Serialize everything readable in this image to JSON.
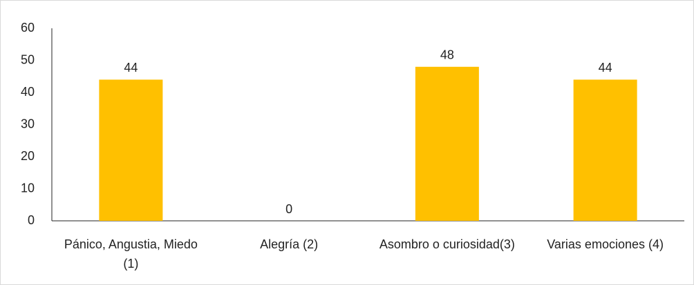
{
  "chart_data": {
    "type": "bar",
    "categories": [
      "Pánico, Angustia, Miedo  (1)",
      "Alegría (2)",
      "Asombro o curiosidad(3)",
      "Varias emociones (4)"
    ],
    "values": [
      44,
      0,
      48,
      44
    ],
    "color": "#ffc000",
    "ylim": [
      0,
      60
    ],
    "yticks": [
      0,
      10,
      20,
      30,
      40,
      50,
      60
    ],
    "grid": false,
    "data_labels": true
  }
}
